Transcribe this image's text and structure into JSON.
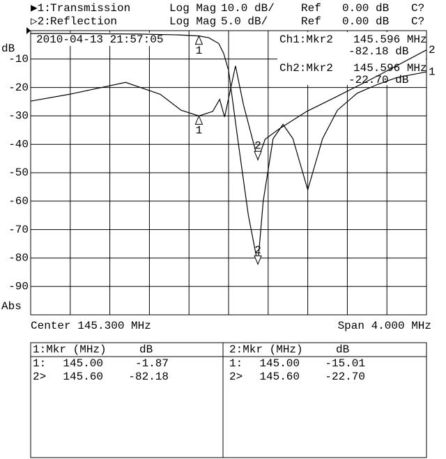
{
  "chart_data": {
    "type": "line",
    "timestamp": "2010-04-13 21:57:05",
    "y_unit": "dB",
    "y_bottom_label": "Abs",
    "center_label": "Center 145.300 MHz",
    "span_label": "Span 4.000 MHz",
    "xlim": [
      143.3,
      147.3
    ],
    "ylim": [
      -100,
      0
    ],
    "yticks": [
      -10,
      -20,
      -30,
      -40,
      -50,
      -60,
      -70,
      -80,
      -90
    ],
    "y2lim": [
      -50,
      0
    ],
    "marker_x": [
      145.0,
      145.596
    ],
    "marker_labels": [
      "1",
      "2"
    ],
    "series": [
      {
        "name": "Transmission",
        "prefix": "▶1:",
        "format": "Log Mag",
        "scale": "10.0 dB/",
        "ref_label": "Ref",
        "ref": "0.00 dB",
        "status": "C?",
        "color": "#000000",
        "axis": "y",
        "trace_label": "1",
        "readout": [
          "Ch1:Mkr2",
          "145.596 MHz",
          "-82.18 dB"
        ],
        "marker_values": [
          -1.87,
          -82.18
        ],
        "x": [
          143.3,
          143.6,
          144.0,
          144.4,
          144.8,
          145.0,
          145.1,
          145.2,
          145.25,
          145.3,
          145.4,
          145.5,
          145.596,
          145.65,
          145.75,
          145.85,
          145.95,
          146.05,
          146.1,
          146.15,
          146.25,
          146.4,
          146.6,
          146.8,
          147.0,
          147.3
        ],
        "values": [
          -1.0,
          -1.0,
          -1.1,
          -1.2,
          -1.5,
          -1.87,
          -2.5,
          -4.5,
          -8,
          -14,
          -40,
          -65,
          -82.18,
          -60,
          -38,
          -33,
          -38,
          -50,
          -56,
          -50,
          -38,
          -28,
          -22,
          -19,
          -16.5,
          -14.5
        ]
      },
      {
        "name": "Reflection",
        "prefix": "▷2:",
        "format": "Log Mag",
        "scale": "5.0 dB/",
        "ref_label": "Ref",
        "ref": "0.00 dB",
        "status": "C?",
        "color": "#000000",
        "axis": "y2",
        "trace_label": "2",
        "readout": [
          "Ch2:Mkr2",
          "145.596 MHz",
          "-22.70 dB"
        ],
        "marker_values": [
          -15.01,
          -22.7
        ],
        "x": [
          143.3,
          143.69,
          144.26,
          144.61,
          144.82,
          145.0,
          145.14,
          145.21,
          145.26,
          145.37,
          145.45,
          145.596,
          145.67,
          145.81,
          146.09,
          146.37,
          146.79,
          147.3
        ],
        "values": [
          -12.4,
          -11.2,
          -9.1,
          -11.2,
          -14,
          -15.01,
          -14.2,
          -12.1,
          -15.2,
          -6.2,
          -13,
          -22.7,
          -19.1,
          -17.3,
          -14.2,
          -11.8,
          -8.1,
          -3.4
        ]
      }
    ]
  },
  "marker_tables": [
    {
      "header": [
        "1:Mkr (MHz)",
        "dB"
      ],
      "rows": [
        [
          "1:",
          "145.00",
          "-1.87"
        ],
        [
          "2>",
          "145.60",
          "-82.18"
        ]
      ]
    },
    {
      "header": [
        "2:Mkr (MHz)",
        "dB"
      ],
      "rows": [
        [
          "1:",
          "145.00",
          "-15.01"
        ],
        [
          "2>",
          "145.60",
          "-22.70"
        ]
      ]
    }
  ]
}
